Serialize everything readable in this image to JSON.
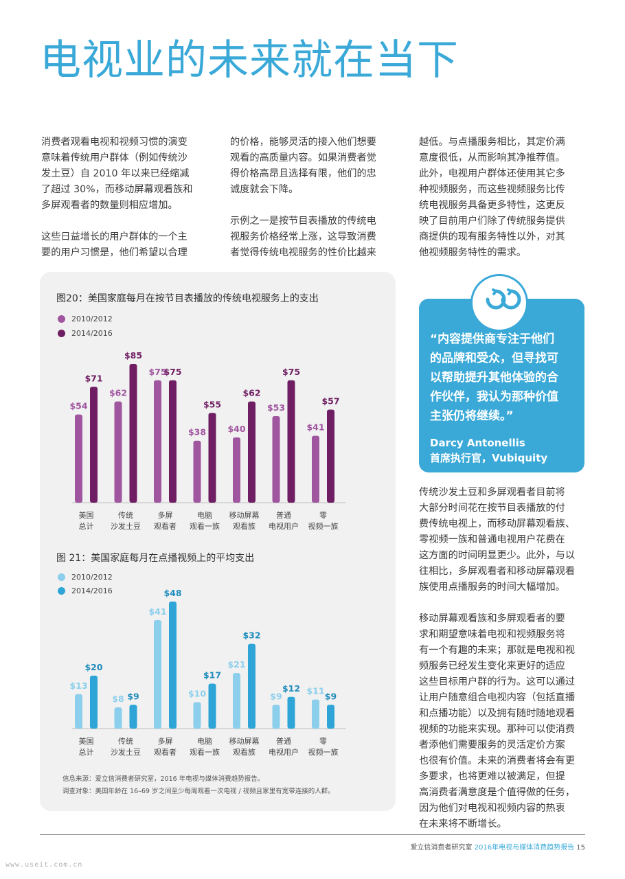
{
  "page": {
    "title": "电视业的未来就在当下",
    "col1": [
      "消费者观看电视和视频习惯的演变\n意味着传统用户群体（例如传统沙\n发土豆）自 2010 年以来已经缩减\n了超过 30%，而移动屏幕观看族和\n多屏观看者的数量则相应增加。",
      "这些日益增长的用户群体的一个主\n要的用户习惯是，他们希望以合理"
    ],
    "col2": [
      "的价格，能够灵活的接入他们想要\n观看的高质量内容。如果消费者觉\n得价格高昂且选择有限，他们的忠\n诚度就会下降。",
      "示例之一是按节目表播放的传统电\n视服务价格经常上涨，这导致消费\n者觉得传统电视服务的性价比越来"
    ],
    "col3": [
      "越低。与点播服务相比，其定价满\n意度很低，从而影响其净推荐值。\n此外，电视用户群体还使用其它多\n种视频服务，而这些视频服务比传\n统电视服务具备更多特性，这更反\n映了目前用户们除了传统服务提供\n商提供的现有服务特性以外，对其\n他视频服务特性的需求。"
    ],
    "col3b": [
      "传统沙发土豆和多屏观看者目前将\n大部分时间花在按节目表播放的付\n费传统电视上，而移动屏幕观看族、\n零视频一族和普通电视用户花费在\n这方面的时间明显更少。此外，与以\n往相比，多屏观看者和移动屏幕观看\n族使用点播服务的时间大幅增加。",
      "移动屏幕观看族和多屏观看者的要\n求和期望意味着电视和视频服务将\n有一个有趣的未来；那就是电视和视\n频服务已经发生变化来更好的适应\n这些目标用户群的行为。这可以通过\n让用户随意组合电视内容（包括直播\n和点播功能）以及拥有随时随地观看\n视频的功能来实现。那种可以使消费\n者添他们需要服务的灵活定价方案\n也很有价值。未来的消费者将会有更\n多要求，也将更难以被满足，但提\n高消费者满意度是个值得做的任务，\n因为他们对电视和视频内容的热衷\n在未来将不断增长。"
    ],
    "quote": {
      "text": "“内容提供商专注于他们\n的品牌和受众，但寻找可\n以帮助提升其他体验的合\n作伙伴，我认为那种价值\n主张仍将继续。”",
      "author": "Darcy Antonellis\n首席执行官，Vubiquity",
      "icon": "quote-icon"
    },
    "source": {
      "line1": "信息来源：爱立信消费者研究室，2016 年电视与媒体消费趋势报告。",
      "line2": "调查对象：美国年龄在 16–69 岁之间至少每周观看一次电视 / 视频且家里有宽带连接的人群。"
    },
    "footer": {
      "org": "爱立信消费者研究室",
      "report": "2016年电视与媒体消费趋势报告",
      "page_number": "15"
    },
    "watermark": "www.useit.com.cn"
  },
  "chart_data": [
    {
      "type": "bar",
      "title": "图20：美国家庭每月在按节目表播放的传统电视服务上的支出",
      "categories": [
        "美国\n总计",
        "传统\n沙发土豆",
        "多屏\n观看者",
        "电脑\n观看一族",
        "移动屏幕\n观看族",
        "普通\n电视用户",
        "零\n视频一族"
      ],
      "series": [
        {
          "name": "2010/2012",
          "values": [
            54,
            62,
            75,
            38,
            40,
            53,
            41
          ],
          "labels": [
            "$54",
            "$62",
            "$75",
            "$38",
            "$40",
            "$53",
            "$41"
          ],
          "color": "#a0559f",
          "label_color": "#a0559f"
        },
        {
          "name": "2014/2016",
          "values": [
            71,
            85,
            75,
            55,
            62,
            75,
            57
          ],
          "labels": [
            "$71",
            "$85",
            "$75",
            "$55",
            "$62",
            "$75",
            "$57"
          ],
          "color": "#6f1e63",
          "label_color": "#6f1e63"
        }
      ],
      "ylim": [
        0,
        85
      ],
      "grid": false,
      "legend": "top-left"
    },
    {
      "type": "bar",
      "title": "图 21：美国家庭每月在点播视频上的平均支出",
      "categories": [
        "美国\n总计",
        "传统\n沙发土豆",
        "多屏\n观看者",
        "电脑\n观看一族",
        "移动屏幕\n观看族",
        "普通\n电视用户",
        "零\n视频一族"
      ],
      "series": [
        {
          "name": "2010/2012",
          "values": [
            13,
            8,
            41,
            10,
            21,
            9,
            11
          ],
          "labels": [
            "$13",
            "$8",
            "$41",
            "$10",
            "$21",
            "$9",
            "$11"
          ],
          "color": "#8ccfec",
          "label_color": "#8ccfec"
        },
        {
          "name": "2014/2016",
          "values": [
            20,
            9,
            48,
            17,
            32,
            12,
            9
          ],
          "labels": [
            "$20",
            "$9",
            "$48",
            "$17",
            "$32",
            "$12",
            "$9"
          ],
          "color": "#2ea5d6",
          "label_color": "#1f8dbd"
        }
      ],
      "ylim": [
        0,
        48
      ],
      "grid": false,
      "legend": "top-left"
    }
  ]
}
